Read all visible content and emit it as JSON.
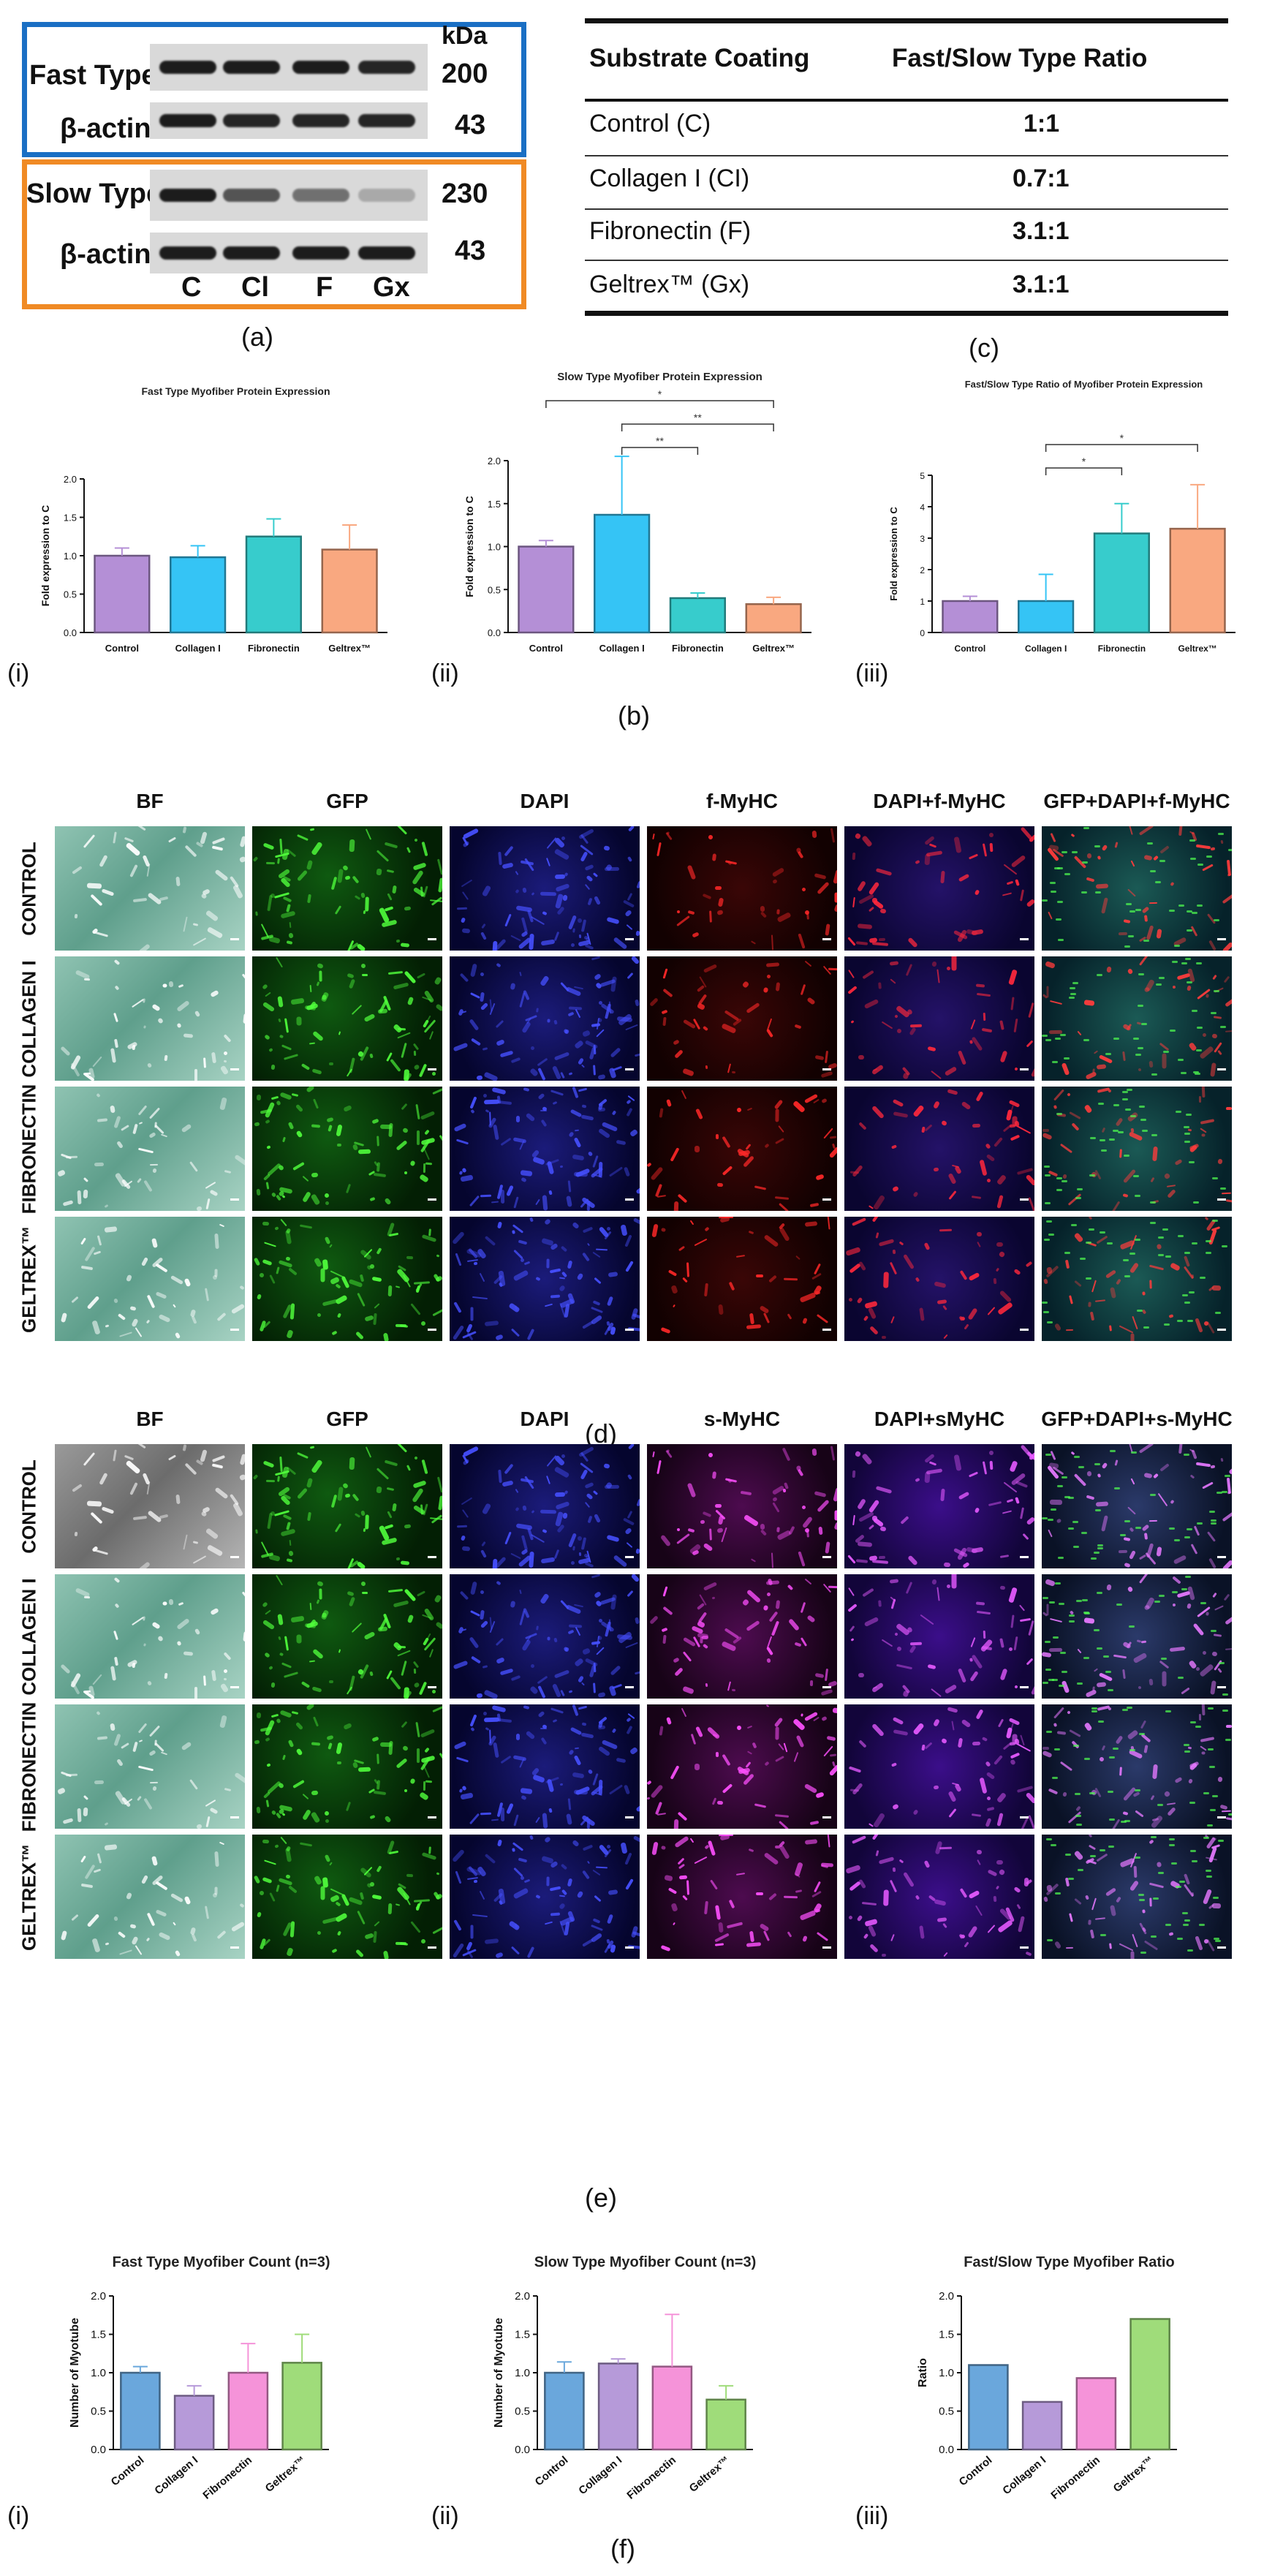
{
  "blot": {
    "kda_label": "kDa",
    "fast_type_label": "Fast Type",
    "slow_type_label": "Slow Type",
    "beta_actin_label": "β-actin",
    "kda_fast": "200",
    "kda_actin": "43",
    "kda_slow": "230",
    "lanes": [
      "C",
      "Cl",
      "F",
      "Gx"
    ],
    "panel_letter": "(a)",
    "fast_border_color": "#1a6fc4",
    "slow_border_color": "#f08a24"
  },
  "table": {
    "header_coating": "Substrate Coating",
    "header_ratio": "Fast/Slow Type Ratio",
    "rows": [
      {
        "coating": "Control (C)",
        "ratio": "1:1"
      },
      {
        "coating": "Collagen I (CI)",
        "ratio": "0.7:1"
      },
      {
        "coating": "Fibronectin (F)",
        "ratio": "3.1:1"
      },
      {
        "coating": "Geltrex™ (Gx)",
        "ratio": "3.1:1"
      }
    ],
    "panel_letter": "(c)"
  },
  "panel_b_letter": "(b)",
  "panel_d_letter": "(d)",
  "panel_e_letter": "(e)",
  "panel_f_letter": "(f)",
  "grid_d": {
    "columns": [
      "BF",
      "GFP",
      "DAPI",
      "f-MyHC",
      "DAPI+f-MyHC",
      "GFP+DAPI+f-MyHC"
    ],
    "rows": [
      "CONTROL",
      "COLLAGEN I",
      "FIBRONECTIN",
      "GELTREX™"
    ]
  },
  "grid_e": {
    "columns": [
      "BF",
      "GFP",
      "DAPI",
      "s-MyHC",
      "DAPI+sMyHC",
      "GFP+DAPI+s-MyHC"
    ],
    "rows": [
      "CONTROL",
      "COLLAGEN I",
      "FIBRONECTIN",
      "GELTREX™"
    ]
  },
  "chart_data": [
    {
      "type": "bar",
      "panel": "(i)",
      "title": "Fast Type Myofiber Protein Expression",
      "ylabel": "Fold expression to C",
      "categories": [
        "Control",
        "Collagen I",
        "Fibronectin",
        "Geltrex™"
      ],
      "values": [
        1.0,
        0.98,
        1.25,
        1.08
      ],
      "errors": [
        0.1,
        0.15,
        0.23,
        0.32
      ],
      "ylim": [
        0,
        2.0
      ],
      "yticks": [
        "0.0",
        "0.5",
        "1.0",
        "1.5",
        "2.0"
      ],
      "colors": [
        "#b48fd6",
        "#35c4f5",
        "#37cccc",
        "#f9a880"
      ]
    },
    {
      "type": "bar",
      "panel": "(ii)",
      "title": "Slow Type Myofiber Protein Expression",
      "ylabel": "Fold expression to C",
      "categories": [
        "Control",
        "Collagen I",
        "Fibronectin",
        "Geltrex™"
      ],
      "values": [
        1.0,
        1.37,
        0.4,
        0.33
      ],
      "errors": [
        0.07,
        0.68,
        0.06,
        0.08
      ],
      "ylim": [
        0,
        2.0
      ],
      "yticks": [
        "0.0",
        "0.5",
        "1.0",
        "1.5",
        "2.0"
      ],
      "colors": [
        "#b48fd6",
        "#35c4f5",
        "#37cccc",
        "#f9a880"
      ],
      "significance": [
        {
          "from": 0,
          "to": 3,
          "label": "*"
        },
        {
          "from": 1,
          "to": 3,
          "label": "**"
        },
        {
          "from": 1,
          "to": 2,
          "label": "**"
        }
      ]
    },
    {
      "type": "bar",
      "panel": "(iii)",
      "title": "Fast/Slow Type Ratio of Myofiber Protein Expression",
      "ylabel": "Fold expression to C",
      "categories": [
        "Control",
        "Collagen I",
        "Fibronectin",
        "Geltrex™"
      ],
      "values": [
        1.0,
        1.0,
        3.15,
        3.3
      ],
      "errors": [
        0.15,
        0.85,
        0.95,
        1.4
      ],
      "ylim": [
        0,
        5
      ],
      "yticks": [
        "0",
        "1",
        "2",
        "3",
        "4",
        "5"
      ],
      "colors": [
        "#b48fd6",
        "#35c4f5",
        "#37cccc",
        "#f9a880"
      ],
      "significance": [
        {
          "from": 1,
          "to": 3,
          "label": "*"
        },
        {
          "from": 1,
          "to": 2,
          "label": "*"
        }
      ]
    },
    {
      "type": "bar",
      "panel": "(i)",
      "title": "Fast Type Myofiber Count (n=3)",
      "ylabel": "Number of Myotube",
      "categories": [
        "Control",
        "Collagen I",
        "Fibronectin",
        "Geltrex™"
      ],
      "values": [
        1.0,
        0.7,
        1.0,
        1.13
      ],
      "errors": [
        0.08,
        0.13,
        0.38,
        0.37
      ],
      "ylim": [
        0,
        2.0
      ],
      "yticks": [
        "0.0",
        "0.5",
        "1.0",
        "1.5",
        "2.0"
      ],
      "colors": [
        "#6aa7dc",
        "#b69ad9",
        "#f593d9",
        "#9fdc7a"
      ]
    },
    {
      "type": "bar",
      "panel": "(ii)",
      "title": "Slow Type Myofiber Count (n=3)",
      "ylabel": "Number of Myotube",
      "categories": [
        "Control",
        "Collagen I",
        "Fibronectin",
        "Geltrex™"
      ],
      "values": [
        1.0,
        1.12,
        1.08,
        0.65
      ],
      "errors": [
        0.14,
        0.06,
        0.68,
        0.18
      ],
      "ylim": [
        0,
        2.0
      ],
      "yticks": [
        "0.0",
        "0.5",
        "1.0",
        "1.5",
        "2.0"
      ],
      "colors": [
        "#6aa7dc",
        "#b69ad9",
        "#f593d9",
        "#9fdc7a"
      ]
    },
    {
      "type": "bar",
      "panel": "(iii)",
      "title": "Fast/Slow Type Myofiber Ratio",
      "ylabel": "Ratio",
      "categories": [
        "Control",
        "Collagen I",
        "Fibronectin",
        "Geltrex™"
      ],
      "values": [
        1.1,
        0.62,
        0.93,
        1.7
      ],
      "ylim": [
        0,
        2.0
      ],
      "yticks": [
        "0.0",
        "0.5",
        "1.0",
        "1.5",
        "2.0"
      ],
      "colors": [
        "#6aa7dc",
        "#b69ad9",
        "#f593d9",
        "#9fdc7a"
      ]
    }
  ]
}
